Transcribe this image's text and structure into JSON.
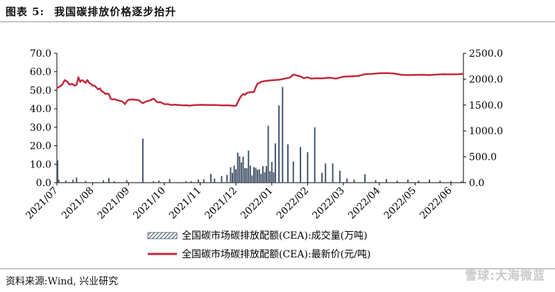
{
  "header": {
    "figure_no": "图表 5:",
    "title": "我国碳排放价格逐步抬升"
  },
  "footer": {
    "source": "资料来源:Wind, 兴业研究"
  },
  "watermark": "雪球:大海微蓝",
  "chart_data": {
    "type": "bar+line",
    "left_axis": {
      "ticks": [
        "0.0",
        "10.0",
        "20.0",
        "30.0",
        "40.0",
        "50.0",
        "60.0",
        "70.0"
      ],
      "ylim": [
        0,
        70
      ]
    },
    "right_axis": {
      "ticks": [
        "0.0",
        "500.0",
        "1000.0",
        "1500.0",
        "2000.0",
        "2500.0"
      ],
      "ylim": [
        0,
        2500
      ]
    },
    "x_ticks": [
      "2021/07",
      "2021/08",
      "2021/09",
      "2021/10",
      "2021/11",
      "2021/12",
      "2022/01",
      "2022/02",
      "2022/03",
      "2022/04",
      "2022/05",
      "2022/06"
    ],
    "x_range": [
      0,
      11.35
    ],
    "legend": {
      "position": "bottom",
      "volume_label": "全国碳市场碳排放配额(CEA):成交量(万吨)",
      "price_label": "全国碳市场碳排放配额(CEA):最新价(元/吨)"
    },
    "colors": {
      "price": "#c0283a",
      "volume": "#44546a"
    },
    "series": [
      {
        "name": "全国碳市场碳排放配额(CEA):最新价(元/吨)",
        "axis": "left",
        "style": "line",
        "x": [
          0,
          0.08,
          0.15,
          0.22,
          0.3,
          0.35,
          0.42,
          0.5,
          0.55,
          0.6,
          0.65,
          0.7,
          0.75,
          0.8,
          0.85,
          0.9,
          0.95,
          1.0,
          1.05,
          1.1,
          1.15,
          1.2,
          1.25,
          1.3,
          1.35,
          1.4,
          1.45,
          1.5,
          1.55,
          1.6,
          1.7,
          1.8,
          1.85,
          1.9,
          1.95,
          2.0,
          2.1,
          2.2,
          2.3,
          2.35,
          2.4,
          2.45,
          2.5,
          2.6,
          2.7,
          2.8,
          2.9,
          3.0,
          3.1,
          3.2,
          3.3,
          3.4,
          3.5,
          3.6,
          3.7,
          3.8,
          3.9,
          4.0,
          4.2,
          4.4,
          4.6,
          4.8,
          5.0,
          5.05,
          5.1,
          5.15,
          5.2,
          5.25,
          5.3,
          5.4,
          5.5,
          5.55,
          5.6,
          5.7,
          5.8,
          6.0,
          6.2,
          6.3,
          6.4,
          6.5,
          6.6,
          6.7,
          6.8,
          6.9,
          7.0,
          7.1,
          7.2,
          7.4,
          7.6,
          7.8,
          8.0,
          8.2,
          8.4,
          8.6,
          8.8,
          9.0,
          9.2,
          9.4,
          9.6,
          9.8,
          10.0,
          10.2,
          10.4,
          10.6,
          10.8,
          11.0,
          11.2,
          11.35
        ],
        "values": [
          51.2,
          52.0,
          53.0,
          55.5,
          54.5,
          53.0,
          53.5,
          52.5,
          53.0,
          57.0,
          54.5,
          55.5,
          55.0,
          54.0,
          55.5,
          54.0,
          53.5,
          52.5,
          52.5,
          51.5,
          50.5,
          51.0,
          49.5,
          49.0,
          48.0,
          48.3,
          48.0,
          45.5,
          45.0,
          45.2,
          44.6,
          44.1,
          43.5,
          42.5,
          44.0,
          44.8,
          45.0,
          44.8,
          44.6,
          43.5,
          43.0,
          43.5,
          44.0,
          44.5,
          45.5,
          43.5,
          43.5,
          42.5,
          42.5,
          42.0,
          42.2,
          42.0,
          41.8,
          41.9,
          41.7,
          41.9,
          42.0,
          42.1,
          42.0,
          42.0,
          41.8,
          41.8,
          41.5,
          43.5,
          45.5,
          47.0,
          48.0,
          47.5,
          48.5,
          49.0,
          49.0,
          51.5,
          53.5,
          54.5,
          55.0,
          55.4,
          55.7,
          56.0,
          56.5,
          56.8,
          58.5,
          58.0,
          57.5,
          56.5,
          57.0,
          56.3,
          56.5,
          56.4,
          56.8,
          56.3,
          57.4,
          57.5,
          57.7,
          58.7,
          58.9,
          59.2,
          59.3,
          59.1,
          58.4,
          58.2,
          58.3,
          58.4,
          58.2,
          58.5,
          58.7,
          58.6,
          58.7,
          58.9
        ]
      },
      {
        "name": "全国碳市场碳排放配额(CEA):成交量(万吨)",
        "axis": "right",
        "style": "bar",
        "x": [
          0.02,
          0.05,
          0.25,
          0.45,
          0.55,
          0.8,
          1.3,
          1.45,
          1.6,
          1.95,
          2.4,
          2.7,
          2.85,
          3.15,
          3.6,
          3.75,
          3.95,
          4.1,
          4.3,
          4.4,
          4.6,
          4.75,
          4.85,
          4.9,
          4.95,
          5.0,
          5.05,
          5.1,
          5.15,
          5.2,
          5.25,
          5.3,
          5.35,
          5.4,
          5.45,
          5.5,
          5.55,
          5.6,
          5.65,
          5.7,
          5.75,
          5.8,
          5.85,
          5.9,
          5.95,
          6.0,
          6.05,
          6.1,
          6.2,
          6.3,
          6.45,
          6.6,
          6.8,
          7.0,
          7.2,
          7.4,
          7.5,
          7.7,
          7.9,
          8.1,
          8.3,
          8.6,
          8.9,
          9.2,
          9.5,
          9.8,
          10.1,
          10.4,
          10.7,
          11.0,
          11.3
        ],
        "values": [
          430,
          60,
          40,
          55,
          100,
          35,
          45,
          90,
          30,
          50,
          850,
          30,
          40,
          70,
          30,
          30,
          60,
          65,
          170,
          80,
          130,
          150,
          300,
          190,
          330,
          260,
          580,
          510,
          390,
          500,
          280,
          280,
          620,
          330,
          140,
          300,
          290,
          250,
          260,
          170,
          320,
          200,
          320,
          1100,
          220,
          400,
          200,
          760,
          1490,
          1850,
          740,
          410,
          690,
          590,
          1070,
          190,
          370,
          370,
          230,
          80,
          60,
          160,
          50,
          70,
          40,
          60,
          40,
          60,
          40,
          30,
          30
        ]
      }
    ]
  }
}
